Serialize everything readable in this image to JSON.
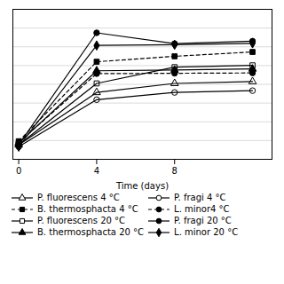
{
  "chart_data": {
    "type": "line",
    "xlabel": "Time (days)",
    "x": [
      0,
      4,
      8,
      12
    ],
    "xlim": [
      -0.3,
      13.0
    ],
    "xticks": [
      0,
      4,
      8
    ],
    "ylim": [
      5.35,
      9.5
    ],
    "yticks": [
      5.35,
      5.86875,
      6.3875,
      6.90625,
      7.425,
      7.94375,
      8.4625,
      8.98125,
      9.5
    ],
    "grid": "y",
    "tick_labels": "x",
    "legend": "bottom",
    "series": [
      {
        "name": "P. fluorescens 4 °C",
        "color": "black",
        "marker": "triangle-open",
        "line_style": "solid",
        "values": [
          5.75,
          7.2,
          7.45,
          7.5
        ]
      },
      {
        "name": "B. thermosphacta 4 °C",
        "color": "black",
        "marker": "square",
        "line_style": "dashed",
        "values": [
          5.85,
          8.05,
          8.2,
          8.32
        ]
      },
      {
        "name": "P. fluorescens 20 °C",
        "color": "black",
        "marker": "square-open",
        "line_style": "solid",
        "values": [
          5.75,
          7.45,
          7.9,
          7.95
        ]
      },
      {
        "name": "B. thermosphacta 20 °C",
        "color": "black",
        "marker": "triangle",
        "line_style": "solid",
        "values": [
          5.8,
          7.8,
          7.82,
          7.85
        ]
      },
      {
        "name": "P. fragi 4 °C",
        "color": "black",
        "marker": "circle-open",
        "line_style": "solid",
        "values": [
          5.7,
          7.0,
          7.2,
          7.25
        ]
      },
      {
        "name": "L. minor4 °C",
        "color": "black",
        "marker": "circle",
        "line_style": "dashed",
        "values": [
          5.82,
          7.72,
          7.73,
          7.74
        ]
      },
      {
        "name": "P. fragi 20 °C",
        "color": "black",
        "marker": "circle",
        "line_style": "solid",
        "values": [
          5.75,
          8.85,
          8.55,
          8.62
        ]
      },
      {
        "name": "L. minor 20 °C",
        "color": "black",
        "marker": "diamond",
        "line_style": "solid",
        "values": [
          5.7,
          8.5,
          8.52,
          8.56
        ]
      }
    ]
  }
}
